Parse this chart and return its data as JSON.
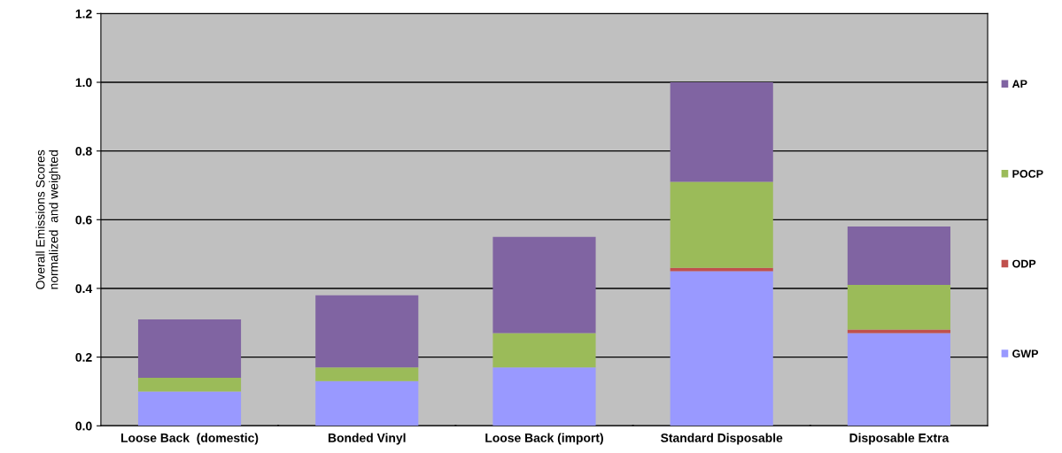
{
  "chart_data": {
    "type": "bar",
    "stacked": true,
    "ylabel": "Overall Emissions Scores\nnormalized  and weighted",
    "categories": [
      "Loose Back  (domestic)",
      "Bonded Vinyl",
      "Loose Back (import)",
      "Standard Disposable",
      "Disposable Extra"
    ],
    "series": [
      {
        "name": "GWP",
        "color": "#9999ff",
        "values": [
          0.1,
          0.13,
          0.17,
          0.45,
          0.27
        ]
      },
      {
        "name": "ODP",
        "color": "#c0504d",
        "values": [
          0,
          0,
          0,
          0.01,
          0.01
        ]
      },
      {
        "name": "POCP",
        "color": "#9bbb59",
        "values": [
          0.04,
          0.04,
          0.1,
          0.25,
          0.13
        ]
      },
      {
        "name": "AP",
        "color": "#8064a2",
        "values": [
          0.17,
          0.21,
          0.28,
          0.29,
          0.17
        ]
      }
    ],
    "ylim": [
      0,
      1.2
    ],
    "yticks": [
      {
        "value": 0,
        "label": "0.0"
      },
      {
        "value": 0.2,
        "label": "0.2"
      },
      {
        "value": 0.4,
        "label": "0.4"
      },
      {
        "value": 0.6,
        "label": "0.6"
      },
      {
        "value": 0.8,
        "label": "0.8"
      },
      {
        "value": 1.0,
        "label": "1.0"
      },
      {
        "value": 1.2,
        "label": "1.2"
      }
    ],
    "grid": "y",
    "legend": "right"
  }
}
